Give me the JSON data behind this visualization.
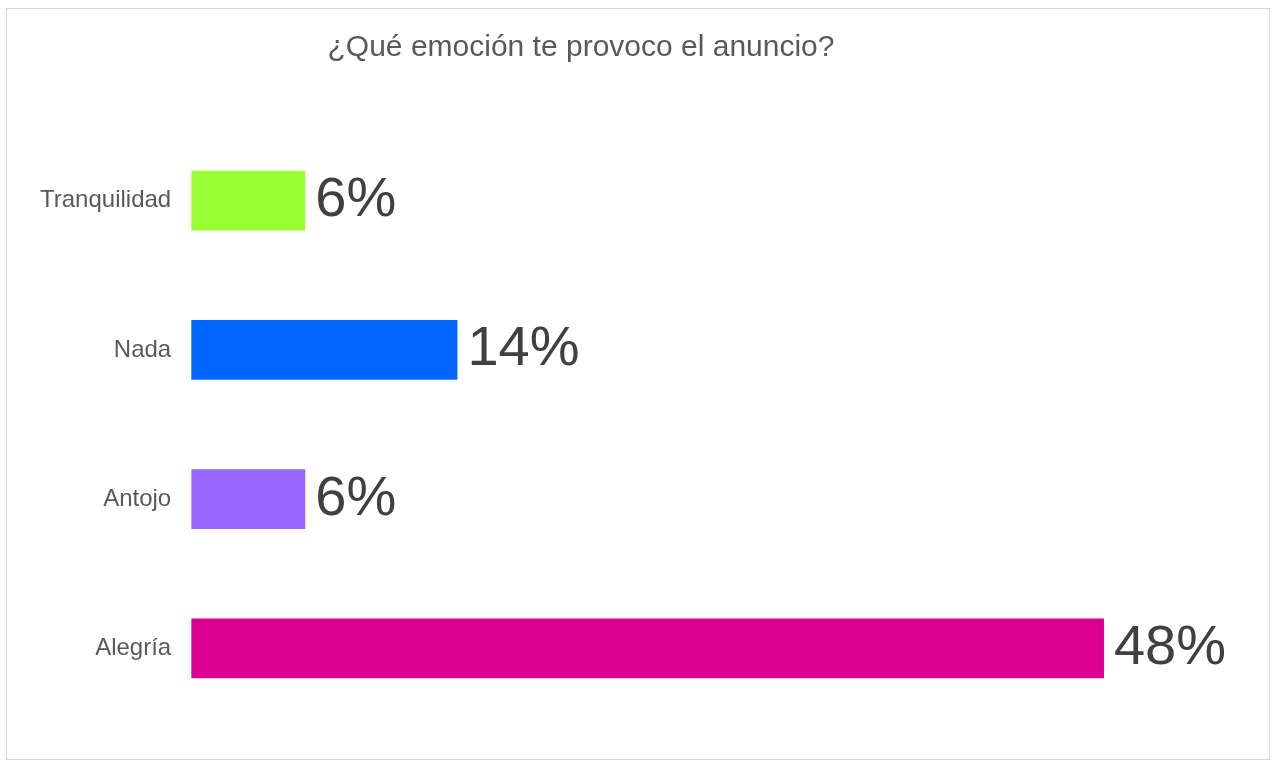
{
  "chart_data": {
    "type": "bar",
    "orientation": "horizontal",
    "title": "¿Qué emoción te provoco el anuncio?",
    "categories": [
      "Tranquilidad",
      "Nada",
      "Antojo",
      "Alegría"
    ],
    "values": [
      6,
      14,
      6,
      48
    ],
    "colors": [
      "#99ff33",
      "#0066ff",
      "#9966ff",
      "#d90090"
    ],
    "value_labels": [
      "6%",
      "14%",
      "6%",
      "48%"
    ],
    "grid": false,
    "legend": false
  }
}
